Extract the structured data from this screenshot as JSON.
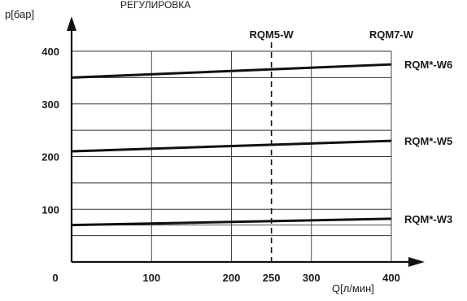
{
  "chart_data": {
    "type": "line",
    "title": "РЕГУЛИРОВКА",
    "xlabel": "Q[л/мин]",
    "ylabel": "p[бар]",
    "xlim": [
      0,
      400
    ],
    "ylim": [
      0,
      400
    ],
    "grid": true,
    "x_ticks": [
      {
        "value": 0,
        "label": "0"
      },
      {
        "value": 100,
        "label": "100"
      },
      {
        "value": 200,
        "label": "200"
      },
      {
        "value": 250,
        "label": "250"
      },
      {
        "value": 300,
        "label": "300"
      },
      {
        "value": 400,
        "label": "400"
      }
    ],
    "y_ticks": [
      {
        "value": 100,
        "label": "100"
      },
      {
        "value": 200,
        "label": "200"
      },
      {
        "value": 300,
        "label": "300"
      },
      {
        "value": 400,
        "label": "400"
      }
    ],
    "y_gridlines": [
      50,
      70,
      100,
      150,
      200,
      250,
      300,
      350,
      400
    ],
    "x_gridlines": [
      100,
      200,
      300,
      400
    ],
    "series": [
      {
        "name": "RQM*-W6",
        "x": [
          0,
          400
        ],
        "y": [
          350,
          375
        ]
      },
      {
        "name": "RQM*-W5",
        "x": [
          0,
          400
        ],
        "y": [
          210,
          230
        ]
      },
      {
        "name": "RQM*-W3",
        "x": [
          0,
          400
        ],
        "y": [
          70,
          82
        ]
      }
    ],
    "vertical_marker": {
      "x": 250,
      "label": "RQM5-W"
    },
    "top_labels": [
      {
        "x": 250,
        "label": "RQM5-W"
      },
      {
        "x": 400,
        "label": "RQM7-W"
      }
    ]
  }
}
